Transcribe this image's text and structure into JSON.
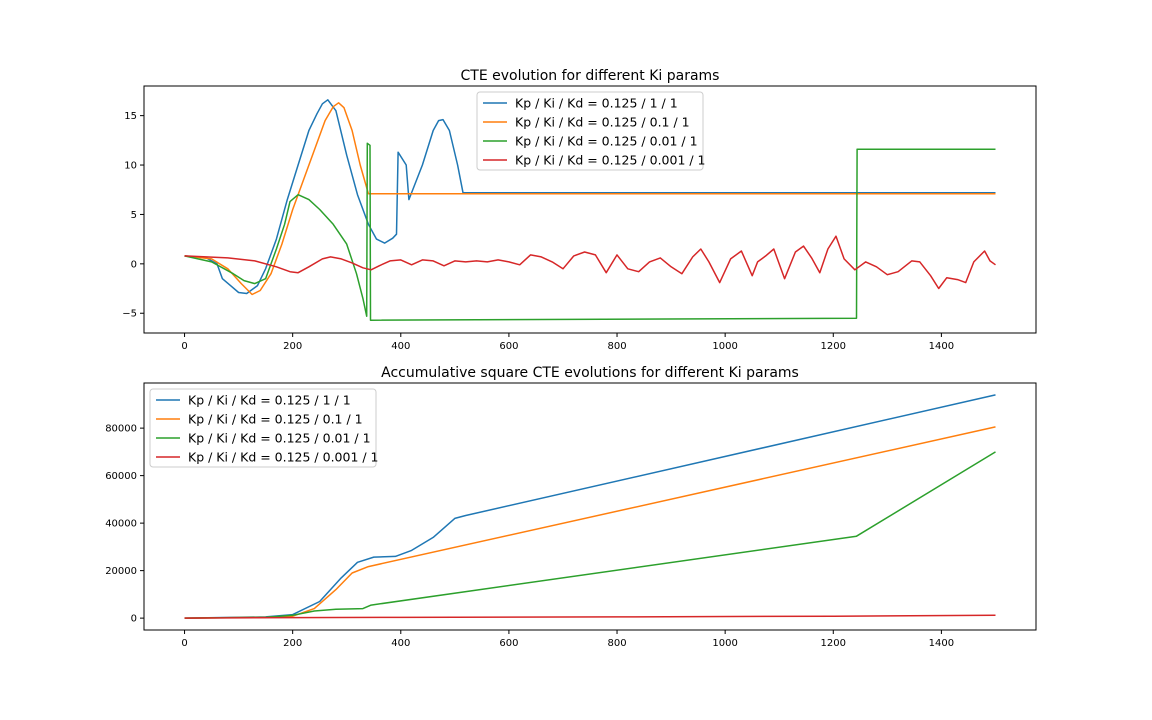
{
  "colors": {
    "blue": "#1f77b4",
    "orange": "#ff7f0e",
    "green": "#2ca02c",
    "red": "#d62728"
  },
  "chart_data": [
    {
      "type": "line",
      "title": "CTE evolution for different Ki params",
      "xlabel": "",
      "ylabel": "",
      "xlim": [
        -75,
        1575
      ],
      "ylim": [
        -7,
        18
      ],
      "xticks": [
        0,
        200,
        400,
        600,
        800,
        1000,
        1200,
        1400
      ],
      "xtick_labels": [
        "0",
        "200",
        "400",
        "600",
        "800",
        "1000",
        "1200",
        "1400"
      ],
      "yticks": [
        -5,
        0,
        5,
        10,
        15
      ],
      "ytick_labels": [
        "−5",
        "0",
        "5",
        "10",
        "15"
      ],
      "grid": false,
      "legend_position": "top-center",
      "series": [
        {
          "name": "Kp / Ki / Kd = 0.125 / 1 / 1",
          "color": "#1f77b4",
          "points": [
            [
              0,
              0.8
            ],
            [
              40,
              0.6
            ],
            [
              60,
              0
            ],
            [
              70,
              -1.5
            ],
            [
              85,
              -2.2
            ],
            [
              100,
              -2.9
            ],
            [
              115,
              -3.0
            ],
            [
              135,
              -2.2
            ],
            [
              150,
              -0.5
            ],
            [
              170,
              2.5
            ],
            [
              190,
              6.5
            ],
            [
              210,
              10
            ],
            [
              230,
              13.5
            ],
            [
              245,
              15.2
            ],
            [
              255,
              16.2
            ],
            [
              265,
              16.6
            ],
            [
              280,
              15.5
            ],
            [
              300,
              11
            ],
            [
              320,
              7
            ],
            [
              340,
              4
            ],
            [
              355,
              2.5
            ],
            [
              370,
              2.1
            ],
            [
              385,
              2.6
            ],
            [
              392,
              3
            ],
            [
              395,
              11.3
            ],
            [
              410,
              10
            ],
            [
              415,
              6.5
            ],
            [
              440,
              10
            ],
            [
              460,
              13.5
            ],
            [
              470,
              14.5
            ],
            [
              478,
              14.6
            ],
            [
              490,
              13.5
            ],
            [
              505,
              10
            ],
            [
              515,
              7.2
            ],
            [
              1500,
              7.2
            ]
          ]
        },
        {
          "name": "Kp / Ki / Kd = 0.125 / 0.1 / 1",
          "color": "#ff7f0e",
          "points": [
            [
              0,
              0.8
            ],
            [
              50,
              0.5
            ],
            [
              80,
              -0.5
            ],
            [
              105,
              -2
            ],
            [
              125,
              -3.1
            ],
            [
              140,
              -2.7
            ],
            [
              160,
              -1
            ],
            [
              180,
              2
            ],
            [
              200,
              5.5
            ],
            [
              220,
              8.5
            ],
            [
              240,
              11.5
            ],
            [
              260,
              14.5
            ],
            [
              275,
              15.9
            ],
            [
              285,
              16.3
            ],
            [
              295,
              15.8
            ],
            [
              310,
              13.5
            ],
            [
              325,
              10
            ],
            [
              340,
              7.1
            ],
            [
              1500,
              7.1
            ]
          ]
        },
        {
          "name": "Kp / Ki / Kd = 0.125 / 0.01 / 1",
          "color": "#2ca02c",
          "points": [
            [
              0,
              0.8
            ],
            [
              50,
              0.2
            ],
            [
              90,
              -1
            ],
            [
              110,
              -1.7
            ],
            [
              130,
              -2
            ],
            [
              150,
              -1.5
            ],
            [
              170,
              1.5
            ],
            [
              185,
              4
            ],
            [
              195,
              6.3
            ],
            [
              210,
              7
            ],
            [
              230,
              6.5
            ],
            [
              250,
              5.5
            ],
            [
              275,
              4
            ],
            [
              300,
              2
            ],
            [
              318,
              -1
            ],
            [
              330,
              -3.5
            ],
            [
              337,
              -5.3
            ],
            [
              338,
              12.2
            ],
            [
              343,
              12
            ],
            [
              344,
              -5.7
            ],
            [
              1243,
              -5.5
            ],
            [
              1244,
              11.6
            ],
            [
              1500,
              11.6
            ]
          ]
        },
        {
          "name": "Kp / Ki / Kd = 0.125 / 0.001 / 1",
          "color": "#d62728",
          "points": [
            [
              0,
              0.8
            ],
            [
              80,
              0.6
            ],
            [
              130,
              0.3
            ],
            [
              170,
              -0.3
            ],
            [
              195,
              -0.8
            ],
            [
              210,
              -0.9
            ],
            [
              230,
              -0.3
            ],
            [
              255,
              0.5
            ],
            [
              270,
              0.7
            ],
            [
              290,
              0.5
            ],
            [
              310,
              0.1
            ],
            [
              330,
              -0.4
            ],
            [
              345,
              -0.6
            ],
            [
              360,
              -0.2
            ],
            [
              380,
              0.3
            ],
            [
              400,
              0.4
            ],
            [
              420,
              -0.1
            ],
            [
              440,
              0.4
            ],
            [
              460,
              0.3
            ],
            [
              480,
              -0.2
            ],
            [
              500,
              0.3
            ],
            [
              520,
              0.2
            ],
            [
              540,
              0.3
            ],
            [
              560,
              0.2
            ],
            [
              580,
              0.4
            ],
            [
              600,
              0.2
            ],
            [
              620,
              -0.1
            ],
            [
              640,
              0.9
            ],
            [
              660,
              0.7
            ],
            [
              680,
              0.2
            ],
            [
              700,
              -0.5
            ],
            [
              720,
              0.8
            ],
            [
              740,
              1.2
            ],
            [
              760,
              0.9
            ],
            [
              780,
              -0.9
            ],
            [
              800,
              0.9
            ],
            [
              820,
              -0.5
            ],
            [
              840,
              -0.8
            ],
            [
              860,
              0.2
            ],
            [
              880,
              0.6
            ],
            [
              900,
              -0.3
            ],
            [
              920,
              -1.0
            ],
            [
              940,
              0.7
            ],
            [
              955,
              1.5
            ],
            [
              970,
              0.2
            ],
            [
              990,
              -1.9
            ],
            [
              1010,
              0.5
            ],
            [
              1030,
              1.3
            ],
            [
              1050,
              -1.2
            ],
            [
              1060,
              0.2
            ],
            [
              1075,
              0.8
            ],
            [
              1090,
              1.5
            ],
            [
              1110,
              -1.5
            ],
            [
              1130,
              1.2
            ],
            [
              1145,
              1.8
            ],
            [
              1160,
              0.6
            ],
            [
              1175,
              -0.9
            ],
            [
              1190,
              1.5
            ],
            [
              1205,
              2.8
            ],
            [
              1220,
              0.5
            ],
            [
              1240,
              -0.6
            ],
            [
              1260,
              0.2
            ],
            [
              1280,
              -0.3
            ],
            [
              1300,
              -1.1
            ],
            [
              1320,
              -0.8
            ],
            [
              1345,
              0.3
            ],
            [
              1360,
              0.2
            ],
            [
              1380,
              -1.2
            ],
            [
              1395,
              -2.5
            ],
            [
              1410,
              -1.4
            ],
            [
              1430,
              -1.6
            ],
            [
              1445,
              -1.9
            ],
            [
              1460,
              0.2
            ],
            [
              1480,
              1.3
            ],
            [
              1490,
              0.3
            ],
            [
              1500,
              -0.1
            ]
          ]
        }
      ]
    },
    {
      "type": "line",
      "title": "Accumulative square CTE evolutions for different Ki params",
      "xlabel": "",
      "ylabel": "",
      "xlim": [
        -75,
        1575
      ],
      "ylim": [
        -5000,
        99000
      ],
      "xticks": [
        0,
        200,
        400,
        600,
        800,
        1000,
        1200,
        1400
      ],
      "xtick_labels": [
        "0",
        "200",
        "400",
        "600",
        "800",
        "1000",
        "1200",
        "1400"
      ],
      "yticks": [
        0,
        20000,
        40000,
        60000,
        80000
      ],
      "ytick_labels": [
        "0",
        "20000",
        "40000",
        "60000",
        "80000"
      ],
      "grid": false,
      "legend_position": "top-left",
      "series": [
        {
          "name": "Kp / Ki / Kd = 0.125 / 1 / 1",
          "color": "#1f77b4",
          "points": [
            [
              0,
              0
            ],
            [
              150,
              500
            ],
            [
              200,
              1500
            ],
            [
              250,
              7000
            ],
            [
              290,
              17000
            ],
            [
              320,
              23500
            ],
            [
              350,
              25700
            ],
            [
              390,
              26000
            ],
            [
              420,
              28500
            ],
            [
              460,
              34000
            ],
            [
              500,
              42000
            ],
            [
              520,
              43200
            ],
            [
              1500,
              94000
            ]
          ]
        },
        {
          "name": "Kp / Ki / Kd = 0.125 / 0.1 / 1",
          "color": "#ff7f0e",
          "points": [
            [
              0,
              0
            ],
            [
              150,
              400
            ],
            [
              200,
              800
            ],
            [
              240,
              4000
            ],
            [
              280,
              12000
            ],
            [
              310,
              19000
            ],
            [
              340,
              21700
            ],
            [
              1500,
              80500
            ]
          ]
        },
        {
          "name": "Kp / Ki / Kd = 0.125 / 0.01 / 1",
          "color": "#2ca02c",
          "points": [
            [
              0,
              0
            ],
            [
              150,
              300
            ],
            [
              200,
              1200
            ],
            [
              240,
              3000
            ],
            [
              280,
              3700
            ],
            [
              330,
              4000
            ],
            [
              345,
              5500
            ],
            [
              1243,
              34500
            ],
            [
              1500,
              70000
            ]
          ]
        },
        {
          "name": "Kp / Ki / Kd = 0.125 / 0.001 / 1",
          "color": "#d62728",
          "points": [
            [
              0,
              0
            ],
            [
              200,
              200
            ],
            [
              400,
              300
            ],
            [
              800,
              500
            ],
            [
              1200,
              800
            ],
            [
              1500,
              1200
            ]
          ]
        }
      ]
    }
  ]
}
